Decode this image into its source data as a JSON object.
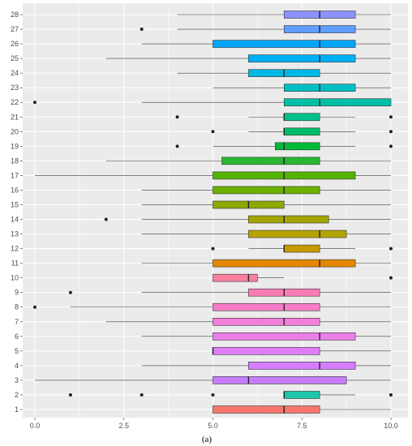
{
  "chart_data": {
    "type": "boxplot",
    "orientation": "horizontal",
    "caption": "(a)",
    "xlim": [
      0,
      10
    ],
    "x_ticks": [
      "0.0",
      "2.5",
      "5.0",
      "7.5",
      "10.0"
    ],
    "x_tick_values": [
      0,
      2.5,
      5,
      7.5,
      10
    ],
    "grid": true,
    "panel_background": "#ebebeb",
    "gridline_color": "#ffffff",
    "boxes": [
      {
        "label": "1",
        "whisker_low": 5,
        "q1": 5,
        "median": 7,
        "q3": 8,
        "whisker_high": 10,
        "outliers": [],
        "color": "#f8766d"
      },
      {
        "label": "2",
        "whisker_low": 7,
        "q1": 7,
        "median": 7,
        "q3": 8,
        "whisker_high": 9,
        "outliers": [
          1,
          3,
          5,
          10
        ],
        "color": "#1ec6a8"
      },
      {
        "label": "3",
        "whisker_low": 0,
        "q1": 5,
        "median": 6,
        "q3": 8.75,
        "whisker_high": 10,
        "outliers": [],
        "color": "#c77cff"
      },
      {
        "label": "4",
        "whisker_low": 3,
        "q1": 6,
        "median": 8,
        "q3": 9,
        "whisker_high": 10,
        "outliers": [],
        "color": "#d57dff"
      },
      {
        "label": "5",
        "whisker_low": 5,
        "q1": 5,
        "median": 5,
        "q3": 8,
        "whisker_high": 10,
        "outliers": [],
        "color": "#e07ff5"
      },
      {
        "label": "6",
        "whisker_low": 3,
        "q1": 5,
        "median": 8,
        "q3": 9,
        "whisker_high": 10,
        "outliers": [],
        "color": "#ea7fe8"
      },
      {
        "label": "7",
        "whisker_low": 2,
        "q1": 5,
        "median": 7,
        "q3": 8,
        "whisker_high": 10,
        "outliers": [],
        "color": "#f17ed9"
      },
      {
        "label": "8",
        "whisker_low": 1,
        "q1": 5,
        "median": 7,
        "q3": 8,
        "whisker_high": 10,
        "outliers": [
          0
        ],
        "color": "#f67cc8"
      },
      {
        "label": "9",
        "whisker_low": 3,
        "q1": 6,
        "median": 7,
        "q3": 8,
        "whisker_high": 10,
        "outliers": [
          1
        ],
        "color": "#f97cb4"
      },
      {
        "label": "10",
        "whisker_low": 5,
        "q1": 5,
        "median": 6,
        "q3": 6.25,
        "whisker_high": 7,
        "outliers": [
          10
        ],
        "color": "#f87f9e"
      },
      {
        "label": "11",
        "whisker_low": 3,
        "q1": 5,
        "median": 8,
        "q3": 9,
        "whisker_high": 10,
        "outliers": [],
        "color": "#e58700"
      },
      {
        "label": "12",
        "whisker_low": 6,
        "q1": 7,
        "median": 7,
        "q3": 8,
        "whisker_high": 9,
        "outliers": [
          5,
          10
        ],
        "color": "#c49a00"
      },
      {
        "label": "13",
        "whisker_low": 3,
        "q1": 6,
        "median": 8,
        "q3": 8.75,
        "whisker_high": 10,
        "outliers": [],
        "color": "#b5a300"
      },
      {
        "label": "14",
        "whisker_low": 3,
        "q1": 6,
        "median": 7,
        "q3": 8.25,
        "whisker_high": 10,
        "outliers": [
          2
        ],
        "color": "#a3a500"
      },
      {
        "label": "15",
        "whisker_low": 3,
        "q1": 5,
        "median": 6,
        "q3": 7,
        "whisker_high": 10,
        "outliers": [],
        "color": "#8fa800"
      },
      {
        "label": "16",
        "whisker_low": 3,
        "q1": 5,
        "median": 7,
        "q3": 8,
        "whisker_high": 10,
        "outliers": [],
        "color": "#6bb100"
      },
      {
        "label": "17",
        "whisker_low": 0,
        "q1": 5,
        "median": 7,
        "q3": 9,
        "whisker_high": 10,
        "outliers": [],
        "color": "#53b400"
      },
      {
        "label": "18",
        "whisker_low": 2,
        "q1": 5.25,
        "median": 7,
        "q3": 8,
        "whisker_high": 10,
        "outliers": [],
        "color": "#2ab731"
      },
      {
        "label": "19",
        "whisker_low": 5,
        "q1": 6.75,
        "median": 7,
        "q3": 8,
        "whisker_high": 9,
        "outliers": [
          4,
          10
        ],
        "color": "#00ba38"
      },
      {
        "label": "20",
        "whisker_low": 6,
        "q1": 7,
        "median": 7,
        "q3": 8,
        "whisker_high": 9,
        "outliers": [
          5,
          10
        ],
        "color": "#00bd6b"
      },
      {
        "label": "21",
        "whisker_low": 6,
        "q1": 7,
        "median": 7,
        "q3": 8,
        "whisker_high": 9,
        "outliers": [
          4,
          10
        ],
        "color": "#00c08b"
      },
      {
        "label": "22",
        "whisker_low": 3,
        "q1": 7,
        "median": 8,
        "q3": 10,
        "whisker_high": 10,
        "outliers": [
          0
        ],
        "color": "#00c1a7"
      },
      {
        "label": "23",
        "whisker_low": 5,
        "q1": 7,
        "median": 8,
        "q3": 9,
        "whisker_high": 10,
        "outliers": [],
        "color": "#00bfc4"
      },
      {
        "label": "24",
        "whisker_low": 4,
        "q1": 6,
        "median": 7,
        "q3": 8,
        "whisker_high": 10,
        "outliers": [],
        "color": "#00b9e3"
      },
      {
        "label": "25",
        "whisker_low": 2,
        "q1": 6,
        "median": 8,
        "q3": 9,
        "whisker_high": 10,
        "outliers": [],
        "color": "#00b0f6"
      },
      {
        "label": "26",
        "whisker_low": 3,
        "q1": 5,
        "median": 8,
        "q3": 9,
        "whisker_high": 10,
        "outliers": [],
        "color": "#00a5ff"
      },
      {
        "label": "27",
        "whisker_low": 4,
        "q1": 7,
        "median": 8,
        "q3": 9,
        "whisker_high": 10,
        "outliers": [
          3
        ],
        "color": "#619cff"
      },
      {
        "label": "28",
        "whisker_low": 4,
        "q1": 7,
        "median": 8,
        "q3": 9,
        "whisker_high": 10,
        "outliers": [],
        "color": "#8b93ff"
      }
    ]
  }
}
